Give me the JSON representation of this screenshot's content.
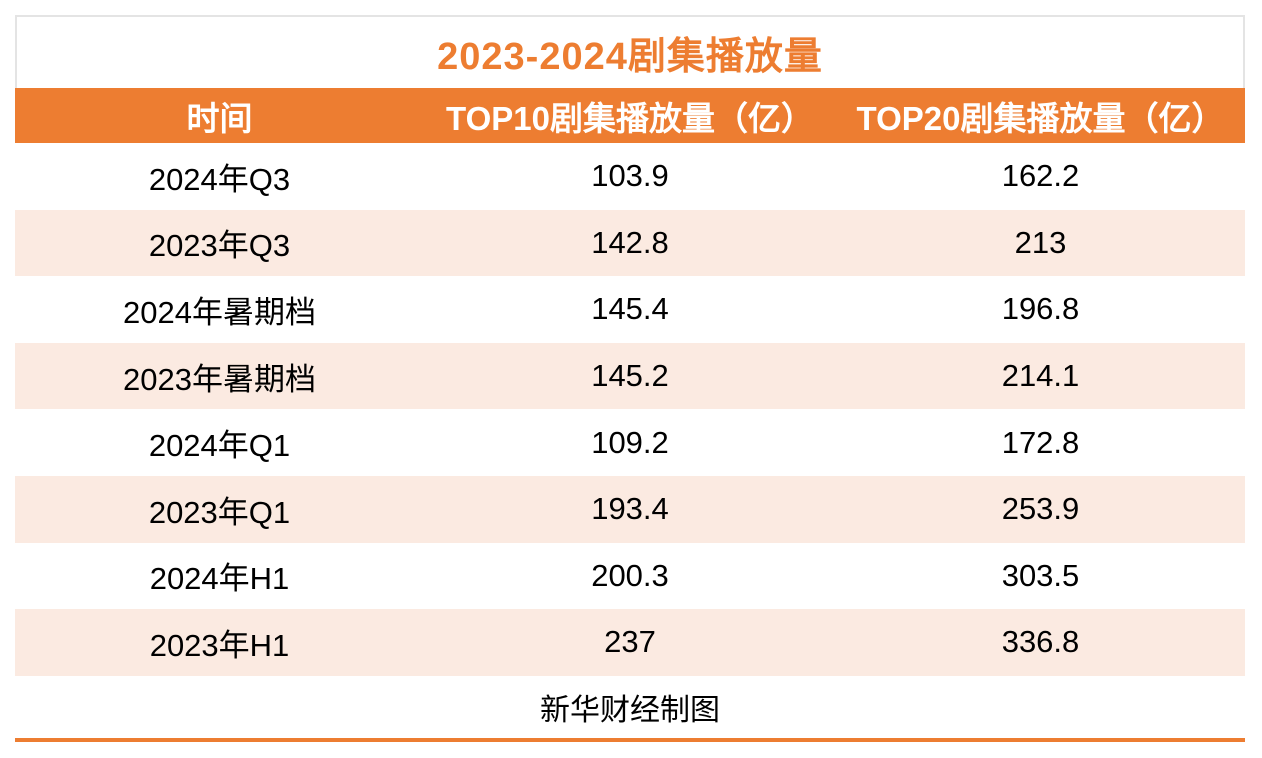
{
  "chart_data": {
    "type": "table",
    "title": "2023-2024剧集播放量",
    "columns": [
      "时间",
      "TOP10剧集播放量（亿）",
      "TOP20剧集播放量（亿）"
    ],
    "rows": [
      [
        "2024年Q3",
        "103.9",
        "162.2"
      ],
      [
        "2023年Q3",
        "142.8",
        "213"
      ],
      [
        "2024年暑期档",
        "145.4",
        "196.8"
      ],
      [
        "2023年暑期档",
        "145.2",
        "214.1"
      ],
      [
        "2024年Q1",
        "109.2",
        "172.8"
      ],
      [
        "2023年Q1",
        "193.4",
        "253.9"
      ],
      [
        "2024年H1",
        "200.3",
        "303.5"
      ],
      [
        "2023年H1",
        "237",
        "336.8"
      ]
    ],
    "source_note": "新华财经制图",
    "layout": {
      "row_striping": "white / light-peach alternating",
      "header_position": "top",
      "columns_alignment": "center"
    }
  },
  "colors": {
    "accent": "#ED7D31",
    "row_alt": "#FBEAE1",
    "border": "#E4E4E4",
    "text": "#000000",
    "header_text": "#FFFFFF"
  }
}
